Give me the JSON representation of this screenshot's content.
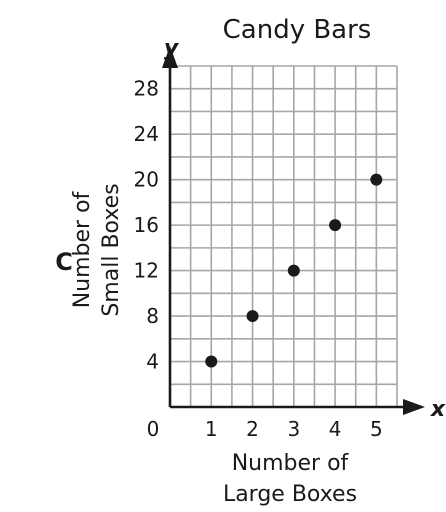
{
  "option_label": "C",
  "chart_data": {
    "type": "scatter",
    "title": "Candy Bars",
    "x_axis_letter": "x",
    "y_axis_letter": "y",
    "xlabel": [
      "Number of",
      "Large Boxes"
    ],
    "ylabel": [
      "Number of",
      "Small Boxes"
    ],
    "origin_label": "0",
    "x_ticks": [
      "1",
      "2",
      "3",
      "4",
      "5"
    ],
    "y_ticks": [
      "4",
      "8",
      "12",
      "16",
      "20",
      "24",
      "28"
    ],
    "xlim": [
      0,
      5.5
    ],
    "ylim": [
      0,
      30
    ],
    "grid": true,
    "points": [
      {
        "x": 1,
        "y": 4
      },
      {
        "x": 2,
        "y": 8
      },
      {
        "x": 3,
        "y": 12
      },
      {
        "x": 4,
        "y": 16
      },
      {
        "x": 5,
        "y": 20
      }
    ],
    "colors": {
      "grid": "#a6a6a6",
      "axis": "#1a1a1a",
      "point": "#1a1a1a"
    }
  }
}
